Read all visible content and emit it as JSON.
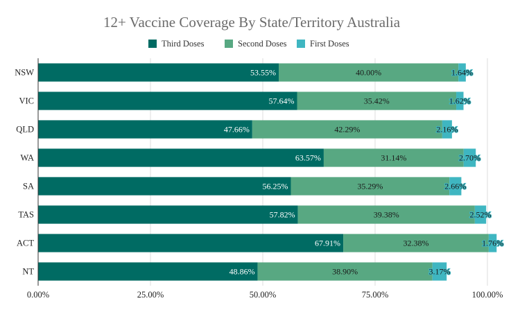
{
  "chart_data": {
    "type": "bar",
    "orientation": "horizontal",
    "stacked": true,
    "title": "12+ Vaccine Coverage By State/Territory Australia",
    "xlabel": "",
    "ylabel": "",
    "categories": [
      "NSW",
      "VIC",
      "QLD",
      "WA",
      "SA",
      "TAS",
      "ACT",
      "NT"
    ],
    "series": [
      {
        "name": "Third Doses",
        "color": "#006b63",
        "values": [
          53.55,
          57.64,
          47.66,
          63.57,
          56.25,
          57.82,
          67.91,
          48.86
        ],
        "labels": [
          "53.55%",
          "57.64%",
          "47.66%",
          "63.57%",
          "56.25%",
          "57.82%",
          "67.91%",
          "48.86%"
        ]
      },
      {
        "name": "Second Doses",
        "color": "#58a882",
        "values": [
          40.0,
          35.42,
          42.29,
          31.14,
          35.29,
          39.38,
          32.38,
          38.9
        ],
        "labels": [
          "40.00%",
          "35.42%",
          "42.29%",
          "31.14%",
          "35.29%",
          "39.38%",
          "32.38%",
          "38.90%"
        ]
      },
      {
        "name": "First Doses",
        "color": "#3fb6c1",
        "values": [
          1.64,
          1.62,
          2.16,
          2.7,
          2.66,
          2.52,
          1.76,
          3.17
        ],
        "labels": [
          "1.64%",
          "1.62%",
          "2.16%",
          "2.70%",
          "2.66%",
          "2.52%",
          "1.76%",
          "3.17%"
        ]
      }
    ],
    "xlim": [
      0,
      100
    ],
    "xticks": [
      0,
      25,
      50,
      75,
      100
    ],
    "xtick_labels": [
      "0.00%",
      "25.00%",
      "50.00%",
      "75.00%",
      "100.00%"
    ],
    "grid": true,
    "legend_position": "top-center"
  }
}
